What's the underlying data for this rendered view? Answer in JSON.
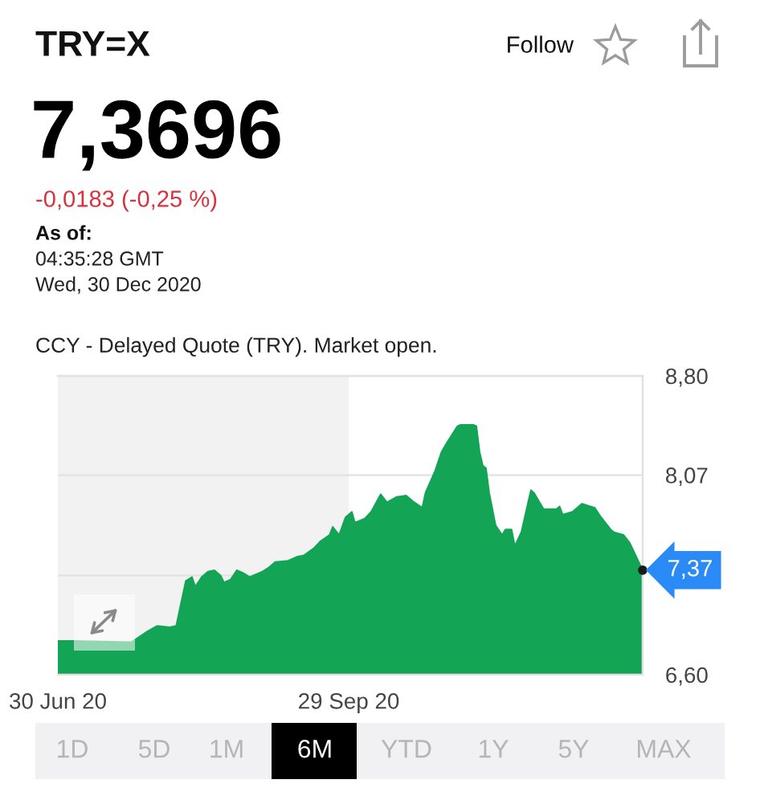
{
  "chart_data": {
    "type": "area",
    "title": "TRY=X",
    "subtitle": "7,3696",
    "x": [
      "2020-06-30",
      "2020-07-05",
      "2020-07-23",
      "2020-07-28",
      "2020-07-31",
      "2020-08-04",
      "2020-08-06",
      "2020-08-07",
      "2020-08-09",
      "2020-08-11",
      "2020-08-12",
      "2020-08-14",
      "2020-08-16",
      "2020-08-18",
      "2020-08-20",
      "2020-08-21",
      "2020-08-23",
      "2020-08-25",
      "2020-08-27",
      "2020-08-29",
      "2020-09-02",
      "2020-09-04",
      "2020-09-06",
      "2020-09-10",
      "2020-09-13",
      "2020-09-15",
      "2020-09-18",
      "2020-09-20",
      "2020-09-23",
      "2020-09-24",
      "2020-09-26",
      "2020-09-28",
      "2020-09-30",
      "2020-10-01",
      "2020-10-04",
      "2020-10-06",
      "2020-10-09",
      "2020-10-11",
      "2020-10-14",
      "2020-10-17",
      "2020-10-19",
      "2020-10-22",
      "2020-10-23",
      "2020-10-26",
      "2020-10-28",
      "2020-10-30",
      "2020-11-02",
      "2020-11-03",
      "2020-11-07",
      "2020-11-08",
      "2020-11-09",
      "2020-11-10",
      "2020-11-11",
      "2020-11-12",
      "2020-11-14",
      "2020-11-16",
      "2020-11-17",
      "2020-11-19",
      "2020-11-20",
      "2020-11-22",
      "2020-11-25",
      "2020-11-26",
      "2020-11-29",
      "2020-12-01",
      "2020-12-03",
      "2020-12-04",
      "2020-12-05",
      "2020-12-08",
      "2020-12-11",
      "2020-12-15",
      "2020-12-17",
      "2020-12-20",
      "2020-12-21",
      "2020-12-24",
      "2020-12-26",
      "2020-12-28",
      "2020-12-30"
    ],
    "values": [
      6.85,
      6.85,
      6.84,
      6.92,
      6.96,
      6.95,
      6.96,
      7.07,
      7.29,
      7.32,
      7.25,
      7.32,
      7.36,
      7.37,
      7.33,
      7.28,
      7.3,
      7.37,
      7.35,
      7.32,
      7.36,
      7.39,
      7.43,
      7.44,
      7.47,
      7.48,
      7.53,
      7.58,
      7.63,
      7.69,
      7.63,
      7.76,
      7.8,
      7.72,
      7.75,
      7.8,
      7.93,
      7.87,
      7.91,
      7.92,
      7.88,
      7.83,
      7.94,
      8.1,
      8.24,
      8.32,
      8.43,
      8.44,
      8.44,
      8.43,
      8.24,
      8.14,
      8.12,
      7.94,
      7.7,
      7.63,
      7.67,
      7.67,
      7.55,
      7.65,
      7.96,
      7.94,
      7.82,
      7.82,
      7.82,
      7.84,
      7.78,
      7.8,
      7.86,
      7.83,
      7.76,
      7.67,
      7.65,
      7.63,
      7.57,
      7.47,
      7.37
    ],
    "color": "#13a456",
    "xlim": [
      "2020-06-30",
      "2020-12-30"
    ],
    "xticks": [
      {
        "value": "2020-06-30",
        "label": "30 Jun 20"
      },
      {
        "value": "2020-09-29",
        "label": "29 Sep 20"
      }
    ],
    "ylim": [
      6.6,
      8.8
    ],
    "yticks": [
      {
        "value": 8.8,
        "label": "8,80"
      },
      {
        "value": 8.07,
        "label": "8,07"
      },
      {
        "value": 7.33,
        "label": null
      },
      {
        "value": 6.6,
        "label": "6,60"
      }
    ],
    "grid": "y",
    "bands": [
      {
        "axis": "x",
        "from": "2020-06-30",
        "to": "2020-09-29",
        "color": "#f2f2f2"
      }
    ],
    "annotations": [
      "-0,0183 (-0,25 %)",
      "As of:",
      "04:35:28 GMT",
      "Wed, 30 Dec 2020",
      "CCY - Delayed Quote (TRY). Market open.",
      "Follow",
      "1D",
      "5D",
      "1M",
      "6M",
      "YTD",
      "1Y",
      "5Y",
      "MAX",
      {
        "text": "7,37",
        "x": "2020-12-30",
        "y": 7.37
      }
    ]
  }
}
